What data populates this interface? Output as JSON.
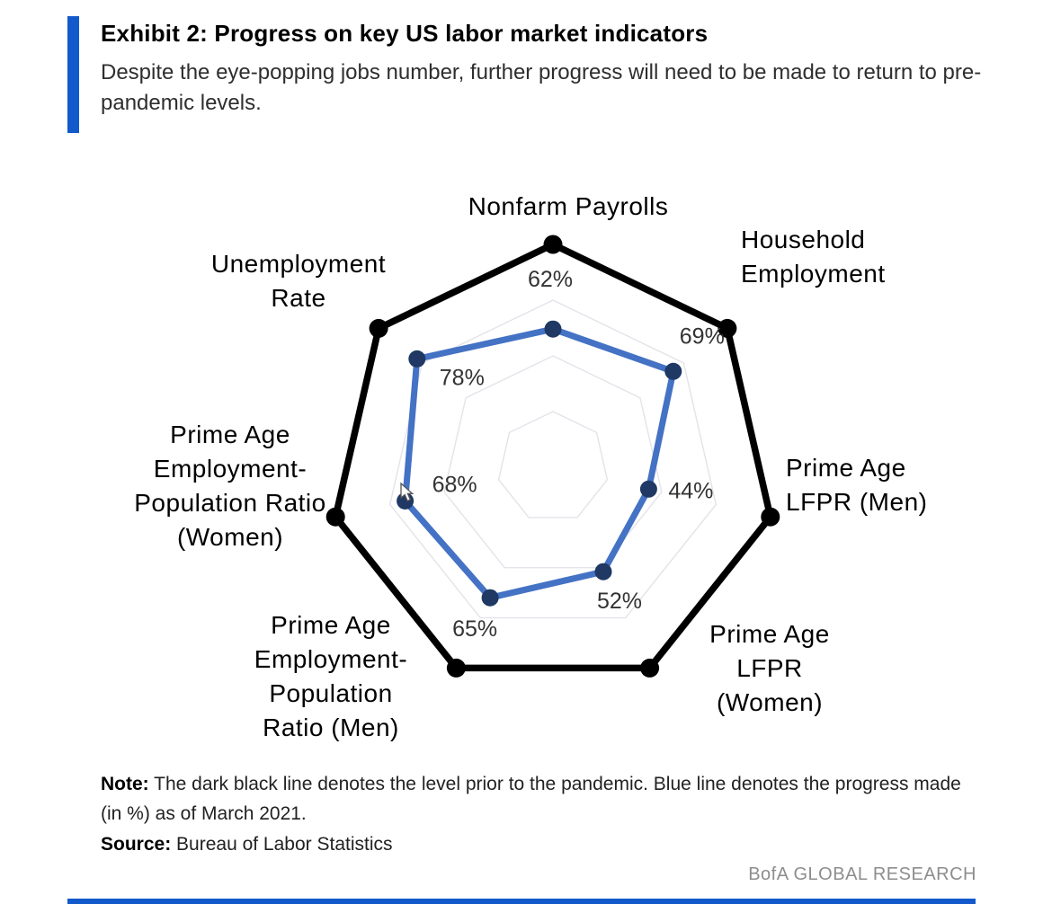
{
  "header": {
    "exhibit_title": "Exhibit 2: Progress on key US labor market indicators",
    "subtitle": "Despite the eye-popping jobs number, further progress will need to be made to return to pre-pandemic levels."
  },
  "chart_data": {
    "type": "radar",
    "title": "Progress on key US labor market indicators",
    "categories": [
      "Nonfarm Payrolls",
      "Household Employment",
      "Prime Age LFPR (Men)",
      "Prime Age LFPR (Women)",
      "Prime Age Employment-Population Ratio (Men)",
      "Prime Age Employment-Population Ratio (Women)",
      "Unemployment Rate"
    ],
    "axis_labels": [
      [
        "Nonfarm Payrolls"
      ],
      [
        "Household",
        "Employment"
      ],
      [
        "Prime Age",
        "LFPR (Men)"
      ],
      [
        "Prime Age",
        "LFPR",
        "(Women)"
      ],
      [
        "Prime Age",
        "Employment-",
        "Population",
        "Ratio (Men)"
      ],
      [
        "Prime Age",
        "Employment-",
        "Population Ratio",
        "(Women)"
      ],
      [
        "Unemployment",
        "Rate"
      ]
    ],
    "max": 100,
    "grid_levels": [
      25,
      50,
      75
    ],
    "grid_color": "#e3e3e9",
    "legend_position": "none",
    "series": [
      {
        "name": "Pre-pandemic level",
        "color": "#000000",
        "marker_color": "#000000",
        "values": [
          100,
          100,
          100,
          100,
          100,
          100,
          100
        ]
      },
      {
        "name": "Progress as of March 2021",
        "color": "#4472c4",
        "marker_color": "#1f3864",
        "values": [
          62,
          69,
          44,
          52,
          65,
          68,
          78
        ]
      }
    ],
    "value_labels": [
      "62%",
      "69%",
      "44%",
      "52%",
      "65%",
      "68%",
      "78%"
    ]
  },
  "footer": {
    "note_label": "Note:",
    "note_text": "The dark black line denotes the level prior to the pandemic. Blue line denotes the progress made (in %) as of March 2021.",
    "source_label": "Source:",
    "source_text": "Bureau of Labor Statistics",
    "brand": "BofA GLOBAL RESEARCH"
  },
  "colors": {
    "accent_blue": "#1259cb",
    "line_blue": "#4472c4",
    "marker_navy": "#1f3864",
    "brand_gray": "#8d8d8d"
  }
}
